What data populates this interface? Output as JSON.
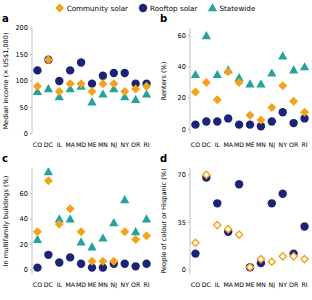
{
  "chart_data": [
    {
      "type": "scatter",
      "title": "a",
      "y_label": "Median income (× US$1,000)",
      "legend": "top",
      "categories": [
        "CO",
        "DC",
        "IL",
        "MA",
        "MD",
        "ME",
        "MN",
        "NJ",
        "NY",
        "OR",
        "RI"
      ],
      "ylim": [
        0,
        200
      ],
      "yticks": [
        0,
        50,
        100,
        150,
        200
      ],
      "series": [
        {
          "name": "Community solar",
          "color": "#f5a11c",
          "marker": "diamond",
          "values": [
            90,
            140,
            80,
            95,
            95,
            80,
            95,
            95,
            80,
            85,
            90
          ]
        },
        {
          "name": "Rooftop solar",
          "color": "#1c2575",
          "marker": "circle",
          "values": [
            120,
            140,
            100,
            120,
            135,
            95,
            110,
            115,
            115,
            95,
            95
          ]
        },
        {
          "name": "Statewide",
          "color": "#23a39a",
          "marker": "triangle",
          "values": [
            80,
            85,
            70,
            85,
            90,
            60,
            75,
            85,
            70,
            65,
            75
          ]
        }
      ]
    },
    {
      "type": "scatter",
      "title": "b",
      "y_label": "Renters (%)",
      "categories": [
        "CO",
        "DC",
        "IL",
        "MA",
        "MD",
        "ME",
        "MN",
        "NJ",
        "NY",
        "OR",
        "RI"
      ],
      "ylim": [
        -3,
        65
      ],
      "yticks": [
        0,
        20,
        40,
        60
      ],
      "series": [
        {
          "color": "#f5a11c",
          "marker": "diamond",
          "values": [
            24,
            30,
            19,
            37,
            30,
            9,
            6,
            14,
            28,
            18,
            11
          ]
        },
        {
          "color": "#1c2575",
          "marker": "circle",
          "values": [
            3,
            5,
            5,
            7,
            3,
            3,
            2,
            5,
            11,
            4,
            7
          ]
        },
        {
          "color": "#23a39a",
          "marker": "triangle",
          "values": [
            35,
            60,
            35,
            38,
            33,
            29,
            29,
            36,
            47,
            38,
            40
          ]
        }
      ]
    },
    {
      "type": "scatter",
      "title": "c",
      "y_label": "In multifamily buildings (%)",
      "categories": [
        "CO",
        "DC",
        "IL",
        "MA",
        "MD",
        "ME",
        "MN",
        "NJ",
        "NY",
        "OR",
        "RI"
      ],
      "ylim": [
        -3,
        80
      ],
      "yticks": [
        0,
        20,
        40,
        60
      ],
      "series": [
        {
          "color": "#f5a11c",
          "marker": "diamond",
          "values": [
            30,
            70,
            36,
            48,
            30,
            7,
            7,
            7,
            30,
            24,
            27
          ]
        },
        {
          "color": "#1c2575",
          "marker": "circle",
          "values": [
            2,
            12,
            6,
            10,
            5,
            2,
            2,
            5,
            5,
            3,
            5
          ]
        },
        {
          "color": "#23a39a",
          "marker": "triangle",
          "values": [
            24,
            77,
            40,
            40,
            22,
            18,
            25,
            37,
            55,
            30,
            40
          ]
        }
      ]
    },
    {
      "type": "scatter",
      "title": "d",
      "y_label": "People of colour or Hispanic (%)",
      "categories": [
        "CO",
        "DC",
        "IL",
        "MA",
        "MD",
        "ME",
        "MN",
        "NJ",
        "NY",
        "OR",
        "RI"
      ],
      "ylim": [
        -3,
        75
      ],
      "yticks": [
        0,
        35,
        70
      ],
      "series": [
        {
          "color": "#f5a11c",
          "marker": "diamond-open",
          "values": [
            20,
            70,
            33,
            30,
            26,
            2,
            8,
            6,
            10,
            10,
            8
          ]
        },
        {
          "color": "#1c2575",
          "marker": "circle",
          "values": [
            12,
            68,
            49,
            28,
            63,
            2,
            5,
            49,
            56,
            12,
            32
          ]
        }
      ]
    }
  ]
}
